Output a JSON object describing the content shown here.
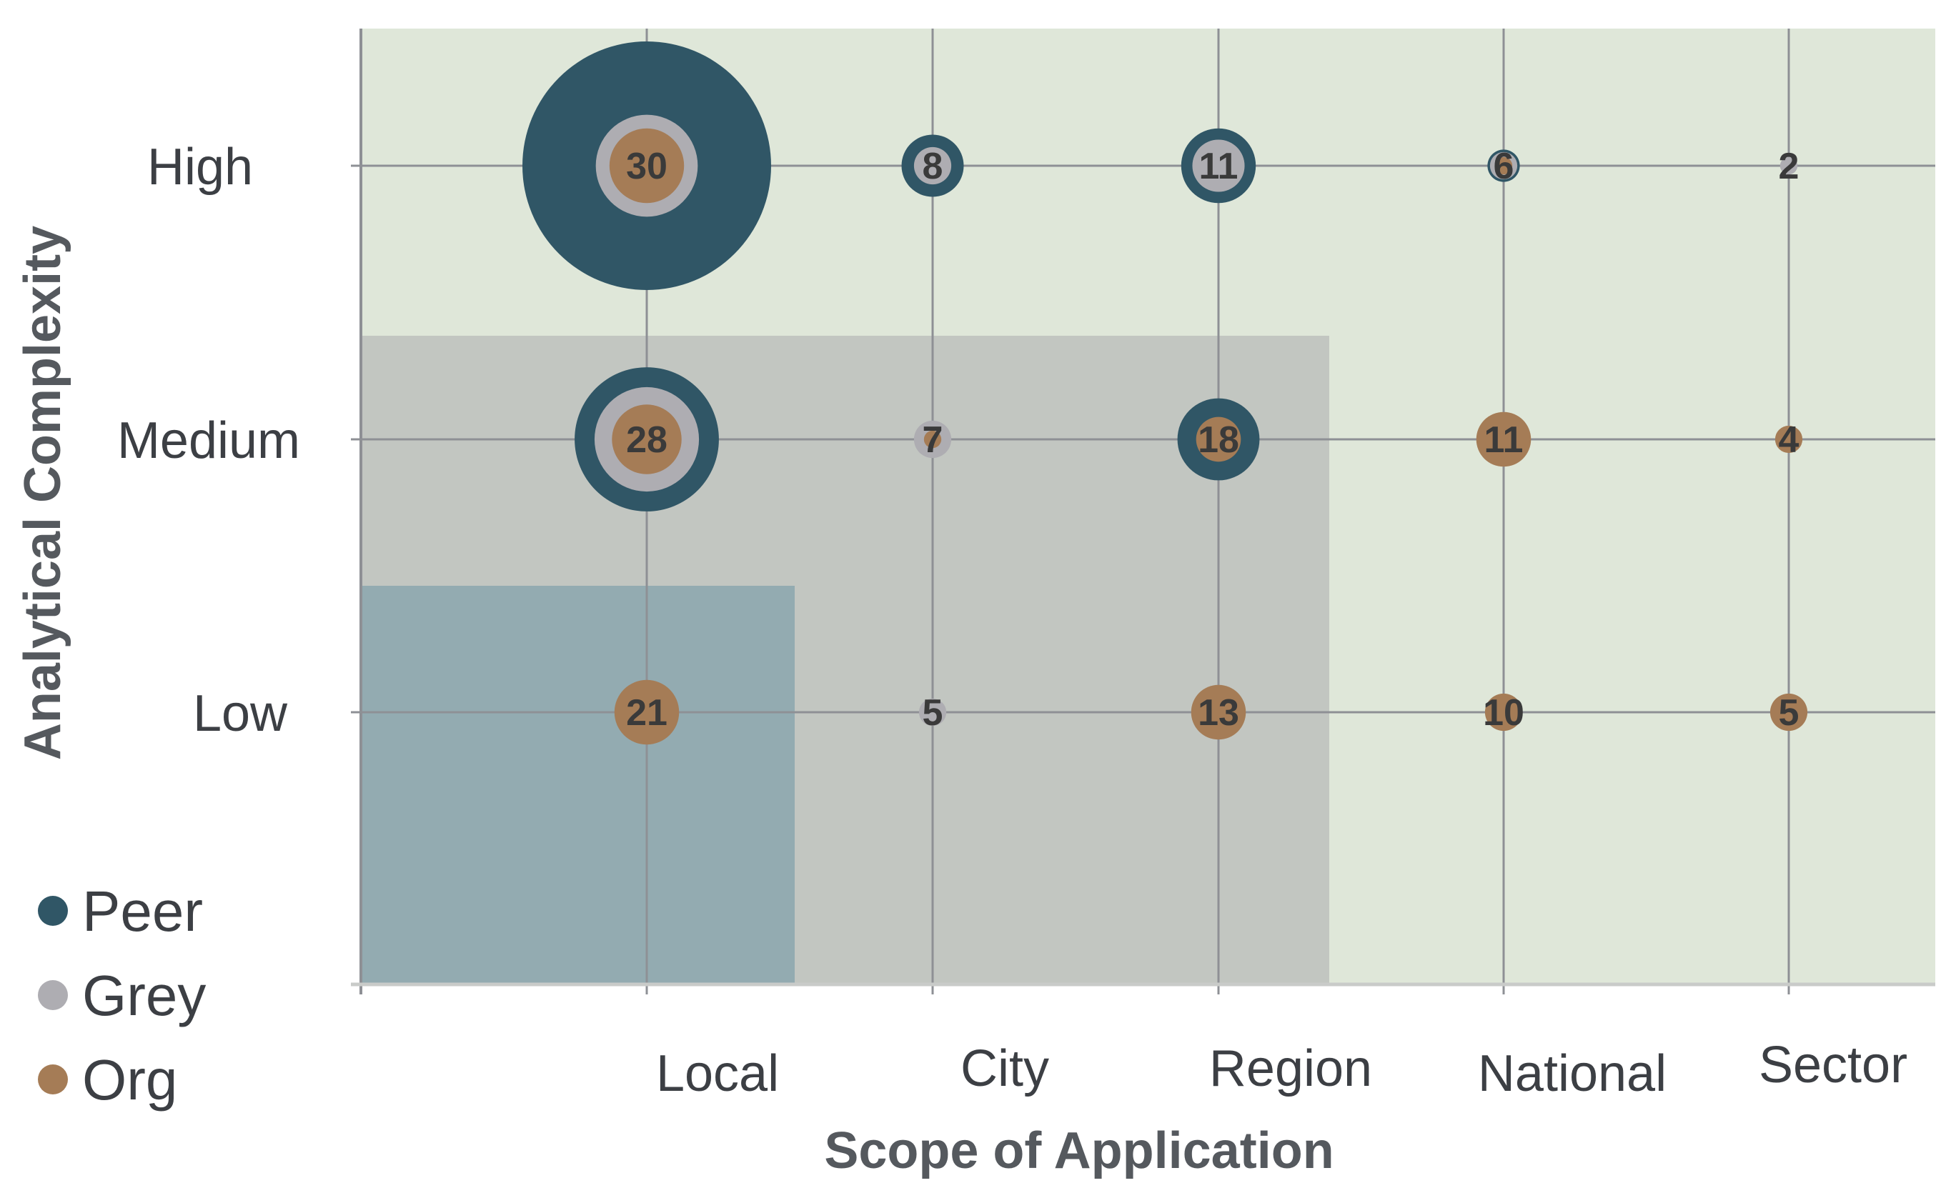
{
  "chart_data": {
    "type": "bubble",
    "xlabel": "Scope of Application",
    "ylabel": "Analytical Complexity",
    "categories_x": [
      "Local",
      "City",
      "Region",
      "National",
      "Sector"
    ],
    "categories_y": [
      "Low",
      "Medium",
      "High"
    ],
    "legend": [
      {
        "name": "Peer",
        "color": "#305666"
      },
      {
        "name": "Grey",
        "color": "#aeadb2"
      },
      {
        "name": "Org",
        "color": "#a57c56"
      }
    ],
    "background_zones": [
      {
        "name": "outer",
        "color": "#dfe7d9",
        "x_max": "Sector",
        "y_max": "High"
      },
      {
        "name": "middle",
        "color": "#c2c6c1",
        "x_max": "Region",
        "y_max": "Medium"
      },
      {
        "name": "inner",
        "color": "#93abb1",
        "x_max": "Local",
        "y_max": "Low"
      }
    ],
    "points": [
      {
        "x": "Local",
        "y": "High",
        "label": "30",
        "peer": 100,
        "grey": 41,
        "org": 30
      },
      {
        "x": "City",
        "y": "High",
        "label": "8",
        "peer": 25,
        "grey": 15,
        "org": 0
      },
      {
        "x": "Region",
        "y": "High",
        "label": "11",
        "peer": 30,
        "grey": 21,
        "org": 0
      },
      {
        "x": "National",
        "y": "High",
        "label": "6",
        "peer": 13,
        "grey": 11,
        "org": 7
      },
      {
        "x": "Sector",
        "y": "High",
        "label": "2",
        "peer": 0,
        "grey": 7,
        "org": 0
      },
      {
        "x": "Local",
        "y": "Medium",
        "label": "28",
        "peer": 58,
        "grey": 42,
        "org": 28
      },
      {
        "x": "City",
        "y": "Medium",
        "label": "7",
        "peer": 0,
        "grey": 15,
        "org": 7
      },
      {
        "x": "Region",
        "y": "Medium",
        "label": "18",
        "peer": 33,
        "grey": 0,
        "org": 18
      },
      {
        "x": "National",
        "y": "Medium",
        "label": "11",
        "peer": 0,
        "grey": 0,
        "org": 22
      },
      {
        "x": "Sector",
        "y": "Medium",
        "label": "4",
        "peer": 0,
        "grey": 0,
        "org": 11
      },
      {
        "x": "Local",
        "y": "Low",
        "label": "21",
        "peer": 0,
        "grey": 0,
        "org": 26
      },
      {
        "x": "City",
        "y": "Low",
        "label": "5",
        "peer": 0,
        "grey": 11,
        "org": 0
      },
      {
        "x": "Region",
        "y": "Low",
        "label": "13",
        "peer": 0,
        "grey": 0,
        "org": 22
      },
      {
        "x": "National",
        "y": "Low",
        "label": "10",
        "peer": 0,
        "grey": 0,
        "org": 15
      },
      {
        "x": "Sector",
        "y": "Low",
        "label": "5",
        "peer": 0,
        "grey": 0,
        "org": 15
      }
    ]
  }
}
